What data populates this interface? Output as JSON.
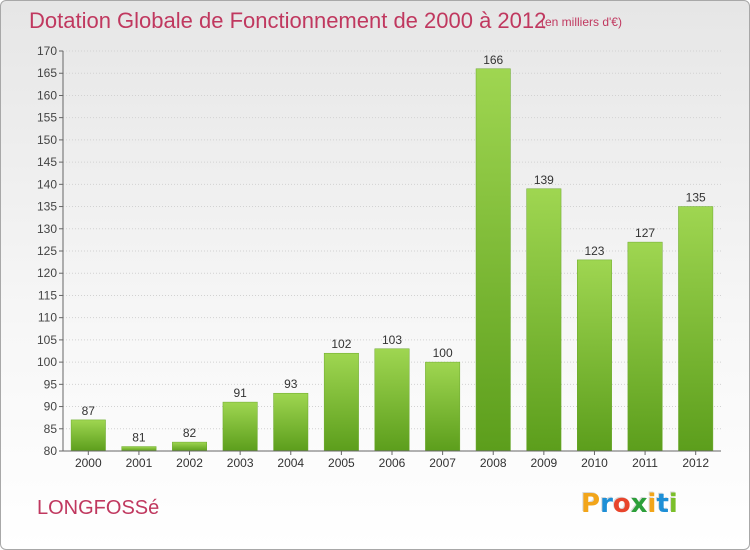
{
  "title": "Dotation Globale de Fonctionnement de 2000 à 2012",
  "subtitle": "(en milliers d'€)",
  "commune": "LONGFOSSé",
  "brand": {
    "letters": [
      "P",
      "r",
      "o",
      "x",
      "i",
      "t",
      "i"
    ],
    "colors": [
      "#f2a51a",
      "#1e8fd6",
      "#e8452c",
      "#2c9f3a",
      "#f2a51a",
      "#1e8fd6",
      "#7bbf2a"
    ]
  },
  "colors": {
    "accent": "#c0385f",
    "bar_light": "#9bd14a",
    "bar_dark": "#5a9e1a"
  },
  "chart_data": {
    "type": "bar",
    "categories": [
      "2000",
      "2001",
      "2002",
      "2003",
      "2004",
      "2005",
      "2006",
      "2007",
      "2008",
      "2009",
      "2010",
      "2011",
      "2012"
    ],
    "values": [
      87,
      81,
      82,
      91,
      93,
      102,
      103,
      100,
      166,
      139,
      123,
      127,
      135
    ],
    "ylim": [
      80,
      170
    ],
    "yticks": [
      80,
      85,
      90,
      95,
      100,
      105,
      110,
      115,
      120,
      125,
      130,
      135,
      140,
      145,
      150,
      155,
      160,
      165,
      170
    ],
    "grid": true,
    "data_labels": true
  }
}
